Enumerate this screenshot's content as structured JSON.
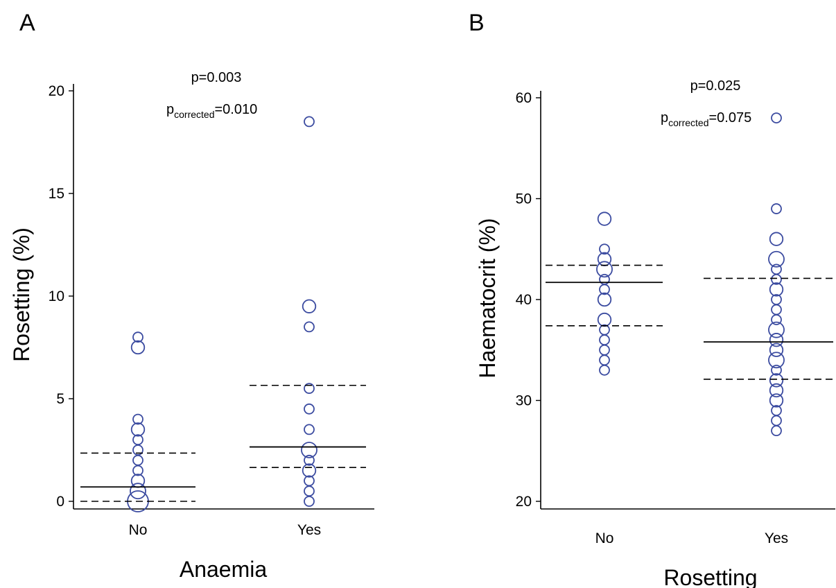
{
  "chart_data": [
    {
      "panel": "A",
      "type": "scatter",
      "categories": [
        "No",
        "Yes"
      ],
      "xlabel": "Anaemia",
      "ylabel": "Rosetting (%)",
      "ylim": [
        0,
        20
      ],
      "yticks": [
        0,
        5,
        10,
        15,
        20
      ],
      "annotation": {
        "p": "p=0.003",
        "p_corrected_prefix": "p",
        "p_corrected_sub": "corrected",
        "p_corrected_value": "=0.010"
      },
      "color": "#3b4ba0",
      "points": [
        {
          "category": "No",
          "values": [
            {
              "y": 0,
              "n": 6
            },
            {
              "y": 0.5,
              "n": 3
            },
            {
              "y": 1,
              "n": 2
            },
            {
              "y": 1.5,
              "n": 1
            },
            {
              "y": 2,
              "n": 1
            },
            {
              "y": 2.5,
              "n": 1
            },
            {
              "y": 3,
              "n": 1
            },
            {
              "y": 3.5,
              "n": 2
            },
            {
              "y": 4,
              "n": 1
            },
            {
              "y": 7.5,
              "n": 2
            },
            {
              "y": 8,
              "n": 1
            }
          ]
        },
        {
          "category": "Yes",
          "values": [
            {
              "y": 0,
              "n": 1
            },
            {
              "y": 0.5,
              "n": 1
            },
            {
              "y": 1,
              "n": 1
            },
            {
              "y": 1.5,
              "n": 2
            },
            {
              "y": 2,
              "n": 1
            },
            {
              "y": 2.5,
              "n": 3
            },
            {
              "y": 3.5,
              "n": 1
            },
            {
              "y": 4.5,
              "n": 1
            },
            {
              "y": 5.5,
              "n": 1
            },
            {
              "y": 8.5,
              "n": 1
            },
            {
              "y": 9.5,
              "n": 2
            },
            {
              "y": 18.5,
              "n": 1
            }
          ]
        }
      ],
      "median": [
        0.7,
        2.65
      ],
      "iqr": [
        [
          0,
          2.35
        ],
        [
          1.65,
          5.65
        ]
      ]
    },
    {
      "panel": "B",
      "type": "scatter",
      "categories": [
        "No",
        "Yes"
      ],
      "xlabel": "Rosetting",
      "ylabel": "Haematocrit (%)",
      "ylim": [
        20,
        60
      ],
      "yticks": [
        20,
        30,
        40,
        50,
        60
      ],
      "annotation": {
        "p": "p=0.025",
        "p_corrected_prefix": "p",
        "p_corrected_sub": "corrected",
        "p_corrected_value": "=0.075"
      },
      "color": "#3b4ba0",
      "points": [
        {
          "category": "No",
          "values": [
            {
              "y": 33,
              "n": 1
            },
            {
              "y": 34,
              "n": 1
            },
            {
              "y": 35,
              "n": 1
            },
            {
              "y": 36,
              "n": 1
            },
            {
              "y": 37,
              "n": 1
            },
            {
              "y": 38,
              "n": 2
            },
            {
              "y": 40,
              "n": 2
            },
            {
              "y": 41,
              "n": 1
            },
            {
              "y": 42,
              "n": 1
            },
            {
              "y": 43,
              "n": 3
            },
            {
              "y": 44,
              "n": 2
            },
            {
              "y": 45,
              "n": 1
            },
            {
              "y": 48,
              "n": 2
            }
          ]
        },
        {
          "category": "Yes",
          "values": [
            {
              "y": 27,
              "n": 1
            },
            {
              "y": 28,
              "n": 1
            },
            {
              "y": 29,
              "n": 1
            },
            {
              "y": 30,
              "n": 2
            },
            {
              "y": 31,
              "n": 2
            },
            {
              "y": 32,
              "n": 2
            },
            {
              "y": 33,
              "n": 1
            },
            {
              "y": 34,
              "n": 3
            },
            {
              "y": 35,
              "n": 2
            },
            {
              "y": 36,
              "n": 2
            },
            {
              "y": 37,
              "n": 3
            },
            {
              "y": 38,
              "n": 1
            },
            {
              "y": 39,
              "n": 1
            },
            {
              "y": 40,
              "n": 1
            },
            {
              "y": 41,
              "n": 2
            },
            {
              "y": 42,
              "n": 1
            },
            {
              "y": 43,
              "n": 1
            },
            {
              "y": 44,
              "n": 3
            },
            {
              "y": 46,
              "n": 2
            },
            {
              "y": 49,
              "n": 1
            },
            {
              "y": 58,
              "n": 1
            }
          ]
        }
      ],
      "median": [
        41.7,
        35.8
      ],
      "iqr": [
        [
          37.4,
          43.4
        ],
        [
          32.1,
          42.1
        ]
      ]
    }
  ]
}
